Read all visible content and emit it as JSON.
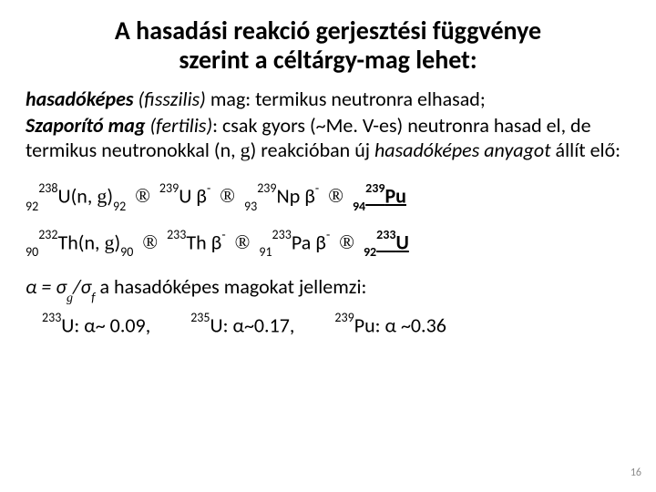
{
  "title_l1": "A hasadási reakció gerjesztési függvénye",
  "title_l2": "szerint a céltárgy-mag lehet:",
  "p1_a": "hasadóképes",
  "p1_b": " (fisszilis)",
  "p1_c": " mag: termikus neutronra elhasad;",
  "p2_a": "Szaporító mag",
  "p2_b": " (fertilis)",
  "p2_c": ": csak gyors (~Me. V-es) neutronra hasad el, de termikus neutronokkal (n, ",
  "p2_d": "g",
  "p2_e": ") reakcióban új ",
  "p2_f": "hasadóképes anyagot",
  "p2_g": " állít elő:",
  "eq1": {
    "a_sub1": "92",
    "a_sup": "238",
    "a_el": "U(n, ",
    "a_g": "g",
    "a_close": ")",
    "a_sub2": "92",
    "b_sup": "239",
    "b_el": "U β",
    "b_exp": "-",
    "c_sub": "93",
    "c_sup": "239",
    "c_el": "Np β",
    "c_exp": "-",
    "d_sub": "94",
    "d_sup": "239",
    "d_el": "Pu"
  },
  "eq2": {
    "a_sub1": "90",
    "a_sup": "232",
    "a_el": "Th(n, ",
    "a_g": "g",
    "a_close": ")",
    "a_sub2": "90",
    "b_sup": "233",
    "b_el": "Th β",
    "b_exp": "-",
    "c_sub": "91",
    "c_sup": "233",
    "c_el": "Pa β",
    "c_exp": "-",
    "d_sub": "92",
    "d_sup": "233",
    "d_el": "U"
  },
  "alpha_def_a": "α = σ",
  "alpha_def_g": "g",
  "alpha_def_b": "/σ",
  "alpha_def_f": "f",
  "alpha_def_c": "  a hasadóképes magokat jellemzi:",
  "av1_sup": "233",
  "av1_el": "U: α~ 0.09,",
  "av2_sup": "235",
  "av2_el": "U: α~0.17,",
  "av3_sup": "239",
  "av3_el": "Pu:  α ~0.36",
  "arrow": "®",
  "page": "16"
}
